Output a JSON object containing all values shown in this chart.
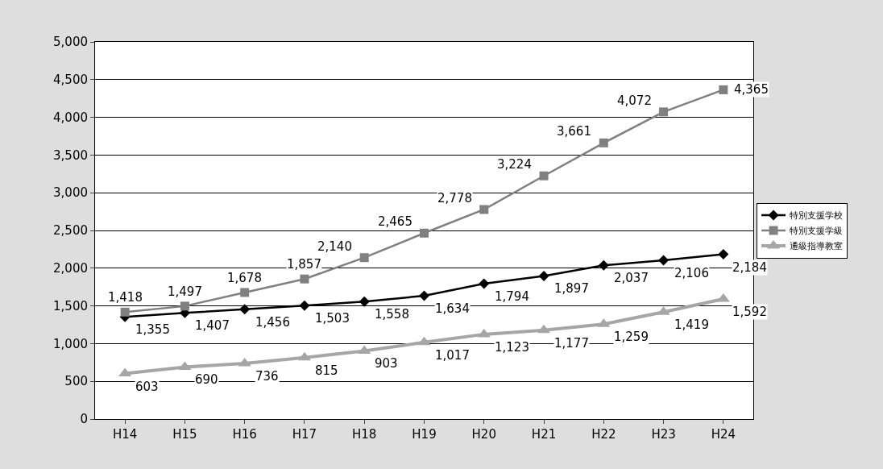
{
  "chart_data": {
    "type": "line",
    "categories": [
      "H14",
      "H15",
      "H16",
      "H17",
      "H18",
      "H19",
      "H20",
      "H21",
      "H22",
      "H23",
      "H24"
    ],
    "series": [
      {
        "name": "特別支援学校",
        "color": "#000000",
        "marker": "diamond",
        "values": [
          1355,
          1407,
          1456,
          1503,
          1558,
          1634,
          1794,
          1897,
          2037,
          2106,
          2184
        ],
        "value_labels": [
          "1,355",
          "1,407",
          "1,456",
          "1,503",
          "1,558",
          "1,634",
          "1,794",
          "1,897",
          "2,037",
          "2,106",
          "2,184"
        ]
      },
      {
        "name": "特別支援学級",
        "color": "#808080",
        "marker": "square",
        "values": [
          1418,
          1497,
          1678,
          1857,
          2140,
          2465,
          2778,
          3224,
          3661,
          4072,
          4365
        ],
        "value_labels": [
          "1,418",
          "1,497",
          "1,678",
          "1,857",
          "2,140",
          "2,465",
          "2,778",
          "3,224",
          "3,661",
          "4,072",
          "4,365"
        ]
      },
      {
        "name": "通級指導教室",
        "color": "#a6a6a6",
        "marker": "triangle",
        "values": [
          603,
          690,
          736,
          815,
          903,
          1017,
          1123,
          1177,
          1259,
          1419,
          1592
        ],
        "value_labels": [
          "603",
          "690",
          "736",
          "815",
          "903",
          "1,017",
          "1,123",
          "1,177",
          "1,259",
          "1,419",
          "1,592"
        ]
      }
    ],
    "ylim": [
      0,
      5000
    ],
    "yticks": [
      {
        "value": 0,
        "label": "0"
      },
      {
        "value": 500,
        "label": "500"
      },
      {
        "value": 1000,
        "label": "1,000"
      },
      {
        "value": 1500,
        "label": "1,500"
      },
      {
        "value": 2000,
        "label": "2,000"
      },
      {
        "value": 2500,
        "label": "2,500"
      },
      {
        "value": 3000,
        "label": "3,000"
      },
      {
        "value": 3500,
        "label": "3,500"
      },
      {
        "value": 4000,
        "label": "4,000"
      },
      {
        "value": 4500,
        "label": "4,500"
      },
      {
        "value": 5000,
        "label": "5,000"
      }
    ],
    "grid": "y",
    "legend": "right"
  }
}
